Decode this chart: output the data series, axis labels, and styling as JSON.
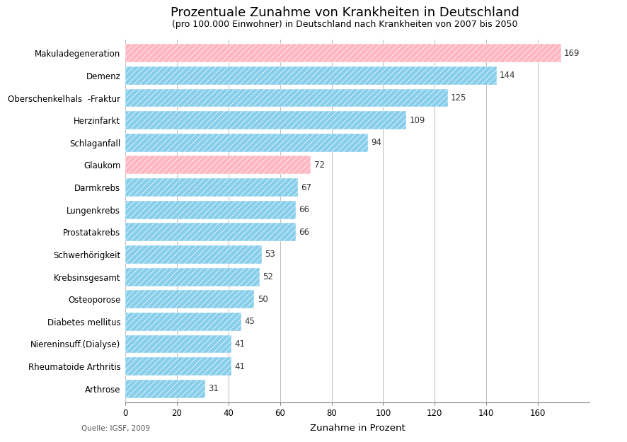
{
  "title": "Prozentuale Zunahme von Krankheiten in Deutschland",
  "subtitle": "(pro 100.000 Einwohner) in Deutschland nach Krankheiten von 2007 bis 2050",
  "xlabel": "Zunahme in Prozent",
  "source": "Quelle: IGSF, 2009",
  "categories": [
    "Arthrose",
    "Rheumatoide Arthritis",
    "Niereninsuff.(Dialyse)",
    "Diabetes mellitus",
    "Osteoporose",
    "Krebsinsgesamt",
    "Schwerhörigkeit",
    "Prostatakrebs",
    "Lungenkrebs",
    "Darmkrebs",
    "Glaukom",
    "Schlaganfall",
    "Herzinfarkt",
    "Oberschenkelhals  -Fraktur",
    "Demenz",
    "Makuladegeneration"
  ],
  "values": [
    31,
    41,
    41,
    45,
    50,
    52,
    53,
    66,
    66,
    67,
    72,
    94,
    109,
    125,
    144,
    169
  ],
  "colors": [
    "#87CEEB",
    "#87CEEB",
    "#87CEEB",
    "#87CEEB",
    "#87CEEB",
    "#87CEEB",
    "#87CEEB",
    "#87CEEB",
    "#87CEEB",
    "#87CEEB",
    "#FFB6C1",
    "#87CEEB",
    "#87CEEB",
    "#87CEEB",
    "#87CEEB",
    "#FFB6C1"
  ],
  "hatch": "////",
  "xlim": [
    0,
    180
  ],
  "xticks": [
    0,
    20,
    40,
    60,
    80,
    100,
    120,
    140,
    160
  ],
  "bar_height": 0.82,
  "figsize": [
    8.86,
    6.25
  ],
  "dpi": 100,
  "bg_color": "#FFFFFF",
  "grid_color": "#BBBBBB",
  "title_fontsize": 13,
  "subtitle_fontsize": 9,
  "label_fontsize": 8.5,
  "value_fontsize": 8.5,
  "axis_label_fontsize": 9.5,
  "hatch_color": "#AAAAAA",
  "pink_color": "#F4A7B5",
  "blue_color": "#87CEEB"
}
